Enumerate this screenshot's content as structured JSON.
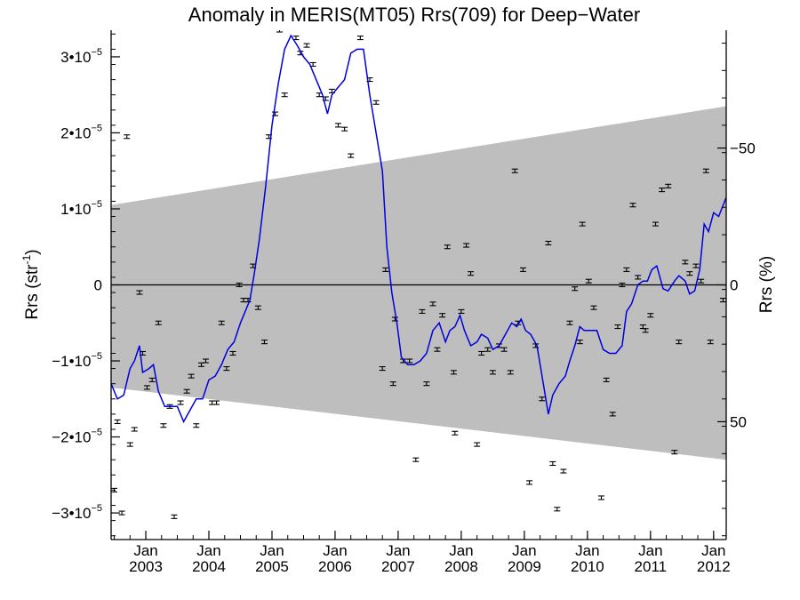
{
  "chart_data": {
    "type": "scatter",
    "title": "Anomaly in MERIS(MT05) Rrs(709) for Deep−Water",
    "ylabel": "Rrs (str",
    "ylabel_sup": "-1",
    "ylabel_close": ")",
    "y2label": "Rrs (%)",
    "xlim": [
      2002.45,
      2012.2
    ],
    "ylim": [
      -3.35e-05,
      3.35e-05
    ],
    "y_ticks": [
      {
        "value": 3e-05,
        "label": "3•10",
        "exp": "−5"
      },
      {
        "value": 2e-05,
        "label": "2•10",
        "exp": "−5"
      },
      {
        "value": 1e-05,
        "label": "1•10",
        "exp": "−5"
      },
      {
        "value": 0,
        "label": "0",
        "exp": ""
      },
      {
        "value": -1e-05,
        "label": "−1•10",
        "exp": "−5"
      },
      {
        "value": -2e-05,
        "label": "−2•10",
        "exp": "−5"
      },
      {
        "value": -3e-05,
        "label": "−3•10",
        "exp": "−5"
      }
    ],
    "y2_ticks": [
      {
        "value": 1.8e-05,
        "label": "−50"
      },
      {
        "value": 0,
        "label": "0"
      },
      {
        "value": -1.8e-05,
        "label": "50"
      }
    ],
    "x_ticks": [
      {
        "value": 2003.0,
        "month": "Jan",
        "year": "2003"
      },
      {
        "value": 2004.0,
        "month": "Jan",
        "year": "2004"
      },
      {
        "value": 2005.0,
        "month": "Jan",
        "year": "2005"
      },
      {
        "value": 2006.0,
        "month": "Jan",
        "year": "2006"
      },
      {
        "value": 2007.0,
        "month": "Jan",
        "year": "2007"
      },
      {
        "value": 2008.0,
        "month": "Jan",
        "year": "2008"
      },
      {
        "value": 2009.0,
        "month": "Jan",
        "year": "2009"
      },
      {
        "value": 2010.0,
        "month": "Jan",
        "year": "2010"
      },
      {
        "value": 2011.0,
        "month": "Jan",
        "year": "2011"
      },
      {
        "value": 2012.0,
        "month": "Jan",
        "year": "2012"
      }
    ],
    "band": {
      "upper": [
        [
          2002.45,
          1.05e-05
        ],
        [
          2012.2,
          2.35e-05
        ]
      ],
      "lower": [
        [
          2002.45,
          -1.35e-05
        ],
        [
          2012.2,
          -2.3e-05
        ]
      ],
      "color": "#bebebe"
    },
    "series": [
      {
        "type": "points",
        "color": "#000000",
        "points": [
          [
            2002.5,
            -2.7e-05
          ],
          [
            2002.55,
            -1.8e-05
          ],
          [
            2002.62,
            -3e-05
          ],
          [
            2002.7,
            1.95e-05
          ],
          [
            2002.75,
            -2.1e-05
          ],
          [
            2002.82,
            -1.9e-05
          ],
          [
            2002.9,
            -1e-06
          ],
          [
            2002.95,
            -9e-06
          ],
          [
            2003.02,
            -1.35e-05
          ],
          [
            2003.1,
            -1.25e-05
          ],
          [
            2003.2,
            -5e-06
          ],
          [
            2003.28,
            -1.85e-05
          ],
          [
            2003.38,
            -1.6e-05
          ],
          [
            2003.45,
            -3.05e-05
          ],
          [
            2003.55,
            -1.55e-05
          ],
          [
            2003.65,
            -1.4e-05
          ],
          [
            2003.72,
            -1.2e-05
          ],
          [
            2003.8,
            -1.85e-05
          ],
          [
            2003.88,
            -1.05e-05
          ],
          [
            2003.95,
            -1e-05
          ],
          [
            2004.05,
            -1.55e-05
          ],
          [
            2004.12,
            -1.55e-05
          ],
          [
            2004.2,
            -5e-06
          ],
          [
            2004.28,
            -1.1e-05
          ],
          [
            2004.38,
            -9e-06
          ],
          [
            2004.48,
            0.0
          ],
          [
            2004.55,
            -2e-06
          ],
          [
            2004.62,
            -2e-06
          ],
          [
            2004.7,
            2.5e-06
          ],
          [
            2004.78,
            -3e-06
          ],
          [
            2004.88,
            -7.5e-06
          ],
          [
            2004.95,
            1.95e-05
          ],
          [
            2005.05,
            2.25e-05
          ],
          [
            2005.12,
            3.35e-05
          ],
          [
            2005.2,
            2.5e-05
          ],
          [
            2005.38,
            3.25e-05
          ],
          [
            2005.45,
            3.05e-05
          ],
          [
            2005.55,
            3.15e-05
          ],
          [
            2005.65,
            2.9e-05
          ],
          [
            2005.75,
            2.5e-05
          ],
          [
            2005.85,
            2.45e-05
          ],
          [
            2005.95,
            2.55e-05
          ],
          [
            2006.05,
            2.1e-05
          ],
          [
            2006.15,
            2.05e-05
          ],
          [
            2006.25,
            1.7e-05
          ],
          [
            2006.4,
            3.25e-05
          ],
          [
            2006.55,
            2.7e-05
          ],
          [
            2006.65,
            2.4e-05
          ],
          [
            2006.8,
            2e-06
          ],
          [
            2006.75,
            -1.1e-05
          ],
          [
            2006.92,
            -1.3e-05
          ],
          [
            2006.95,
            -4.5e-06
          ],
          [
            2007.08,
            -1e-05
          ],
          [
            2007.18,
            -1e-05
          ],
          [
            2007.28,
            -2.3e-05
          ],
          [
            2007.38,
            -3.5e-06
          ],
          [
            2007.45,
            -1.3e-05
          ],
          [
            2007.55,
            -2.5e-06
          ],
          [
            2007.62,
            -8.5e-06
          ],
          [
            2007.7,
            -4e-06
          ],
          [
            2007.78,
            5e-06
          ],
          [
            2007.88,
            -1.15e-05
          ],
          [
            2007.9,
            -1.95e-05
          ],
          [
            2008.0,
            -3.5e-06
          ],
          [
            2008.08,
            5.2e-06
          ],
          [
            2008.15,
            1.5e-06
          ],
          [
            2008.25,
            -2.1e-05
          ],
          [
            2008.32,
            -9e-06
          ],
          [
            2008.42,
            -8.5e-06
          ],
          [
            2008.5,
            -1.15e-05
          ],
          [
            2008.6,
            -8e-06
          ],
          [
            2008.68,
            -8.5e-06
          ],
          [
            2008.78,
            -1.15e-05
          ],
          [
            2008.85,
            1.5e-05
          ],
          [
            2008.9,
            -5e-06
          ],
          [
            2008.98,
            2e-06
          ],
          [
            2009.08,
            -2.6e-05
          ],
          [
            2009.18,
            -8e-06
          ],
          [
            2009.28,
            -1.5e-05
          ],
          [
            2009.38,
            5.5e-06
          ],
          [
            2009.45,
            -2.35e-05
          ],
          [
            2009.52,
            -2.95e-05
          ],
          [
            2009.62,
            -2.45e-05
          ],
          [
            2009.72,
            -5e-06
          ],
          [
            2009.8,
            -5e-07
          ],
          [
            2009.88,
            -7.5e-06
          ],
          [
            2009.92,
            8e-06
          ],
          [
            2010.02,
            5e-07
          ],
          [
            2010.1,
            -3e-06
          ],
          [
            2010.22,
            -2.8e-05
          ],
          [
            2010.3,
            -1.25e-05
          ],
          [
            2010.4,
            -1.7e-05
          ],
          [
            2010.48,
            -5.5e-06
          ],
          [
            2010.55,
            0.0
          ],
          [
            2010.62,
            2e-06
          ],
          [
            2010.72,
            1.05e-05
          ],
          [
            2010.8,
            1e-06
          ],
          [
            2010.88,
            -5.5e-06
          ],
          [
            2010.92,
            -6e-06
          ],
          [
            2011.0,
            -4e-06
          ],
          [
            2011.08,
            8e-06
          ],
          [
            2011.18,
            1.25e-05
          ],
          [
            2011.28,
            1.3e-05
          ],
          [
            2011.38,
            -2.2e-05
          ],
          [
            2011.45,
            -7.5e-06
          ],
          [
            2011.55,
            3e-06
          ],
          [
            2011.62,
            1.5e-06
          ],
          [
            2011.72,
            2.5e-06
          ],
          [
            2011.8,
            5e-07
          ],
          [
            2011.88,
            1.5e-05
          ],
          [
            2011.95,
            -7.5e-06
          ],
          [
            2012.15,
            -2e-06
          ]
        ]
      },
      {
        "type": "line",
        "color": "#0000dd",
        "points": [
          [
            2002.45,
            -1.3e-05
          ],
          [
            2002.55,
            -1.5e-05
          ],
          [
            2002.65,
            -1.45e-05
          ],
          [
            2002.75,
            -1.1e-05
          ],
          [
            2002.82,
            -1e-05
          ],
          [
            2002.9,
            -8e-06
          ],
          [
            2002.95,
            -1.15e-05
          ],
          [
            2003.05,
            -1.1e-05
          ],
          [
            2003.12,
            -1.05e-05
          ],
          [
            2003.2,
            -1.4e-05
          ],
          [
            2003.3,
            -1.6e-05
          ],
          [
            2003.4,
            -1.6e-05
          ],
          [
            2003.5,
            -1.6e-05
          ],
          [
            2003.6,
            -1.8e-05
          ],
          [
            2003.7,
            -1.65e-05
          ],
          [
            2003.8,
            -1.5e-05
          ],
          [
            2003.9,
            -1.5e-05
          ],
          [
            2004.0,
            -1.25e-05
          ],
          [
            2004.1,
            -1.2e-05
          ],
          [
            2004.2,
            -1.05e-05
          ],
          [
            2004.3,
            -8.5e-06
          ],
          [
            2004.4,
            -7.5e-06
          ],
          [
            2004.5,
            -5e-06
          ],
          [
            2004.6,
            -3e-06
          ],
          [
            2004.65,
            -2e-06
          ],
          [
            2004.72,
            1.5e-06
          ],
          [
            2004.8,
            6e-06
          ],
          [
            2004.9,
            1.3e-05
          ],
          [
            2005.0,
            2.1e-05
          ],
          [
            2005.1,
            2.65e-05
          ],
          [
            2005.2,
            3.1e-05
          ],
          [
            2005.3,
            3.28e-05
          ],
          [
            2005.4,
            3.15e-05
          ],
          [
            2005.5,
            3e-05
          ],
          [
            2005.6,
            2.9e-05
          ],
          [
            2005.7,
            2.7e-05
          ],
          [
            2005.8,
            2.5e-05
          ],
          [
            2005.88,
            2.25e-05
          ],
          [
            2005.95,
            2.5e-05
          ],
          [
            2006.05,
            2.6e-05
          ],
          [
            2006.15,
            2.7e-05
          ],
          [
            2006.25,
            3.05e-05
          ],
          [
            2006.35,
            3.1e-05
          ],
          [
            2006.45,
            3.1e-05
          ],
          [
            2006.55,
            2.5e-05
          ],
          [
            2006.65,
            2e-05
          ],
          [
            2006.75,
            1.5e-05
          ],
          [
            2006.82,
            5e-06
          ],
          [
            2006.9,
            -1e-06
          ],
          [
            2006.98,
            -5e-06
          ],
          [
            2007.05,
            -9.5e-06
          ],
          [
            2007.15,
            -1.05e-05
          ],
          [
            2007.25,
            -1.05e-05
          ],
          [
            2007.35,
            -1e-05
          ],
          [
            2007.45,
            -9e-06
          ],
          [
            2007.55,
            -6e-06
          ],
          [
            2007.65,
            -5e-06
          ],
          [
            2007.75,
            -7.5e-06
          ],
          [
            2007.82,
            -6e-06
          ],
          [
            2007.9,
            -5.5e-06
          ],
          [
            2007.98,
            -4e-06
          ],
          [
            2008.05,
            -6e-06
          ],
          [
            2008.15,
            -8e-06
          ],
          [
            2008.25,
            -7.5e-06
          ],
          [
            2008.32,
            -6.5e-06
          ],
          [
            2008.42,
            -7e-06
          ],
          [
            2008.5,
            -8.5e-06
          ],
          [
            2008.6,
            -8e-06
          ],
          [
            2008.7,
            -6.5e-06
          ],
          [
            2008.8,
            -5e-06
          ],
          [
            2008.88,
            -5.5e-06
          ],
          [
            2008.95,
            -4.5e-06
          ],
          [
            2009.02,
            -6e-06
          ],
          [
            2009.1,
            -6.5e-06
          ],
          [
            2009.2,
            -8e-06
          ],
          [
            2009.28,
            -1.2e-05
          ],
          [
            2009.38,
            -1.7e-05
          ],
          [
            2009.45,
            -1.45e-05
          ],
          [
            2009.55,
            -1.3e-05
          ],
          [
            2009.65,
            -1.2e-05
          ],
          [
            2009.72,
            -1e-05
          ],
          [
            2009.8,
            -8e-06
          ],
          [
            2009.88,
            -5.5e-06
          ],
          [
            2009.95,
            -6e-06
          ],
          [
            2010.05,
            -6e-06
          ],
          [
            2010.15,
            -6e-06
          ],
          [
            2010.25,
            -8.5e-06
          ],
          [
            2010.35,
            -9e-06
          ],
          [
            2010.45,
            -9e-06
          ],
          [
            2010.55,
            -8e-06
          ],
          [
            2010.62,
            -3.5e-06
          ],
          [
            2010.7,
            -2.5e-06
          ],
          [
            2010.8,
            0.0
          ],
          [
            2010.88,
            5e-07
          ],
          [
            2010.95,
            5e-07
          ],
          [
            2011.02,
            2e-06
          ],
          [
            2011.1,
            2.5e-06
          ],
          [
            2011.2,
            -5e-07
          ],
          [
            2011.28,
            -8e-07
          ],
          [
            2011.38,
            5e-07
          ],
          [
            2011.45,
            1.2e-06
          ],
          [
            2011.55,
            5e-07
          ],
          [
            2011.62,
            -1.2e-06
          ],
          [
            2011.7,
            -8e-07
          ],
          [
            2011.78,
            2e-06
          ],
          [
            2011.85,
            8e-06
          ],
          [
            2011.92,
            7e-06
          ],
          [
            2012.0,
            9.5e-06
          ],
          [
            2012.08,
            9e-06
          ],
          [
            2012.2,
            1.15e-05
          ]
        ]
      }
    ]
  }
}
